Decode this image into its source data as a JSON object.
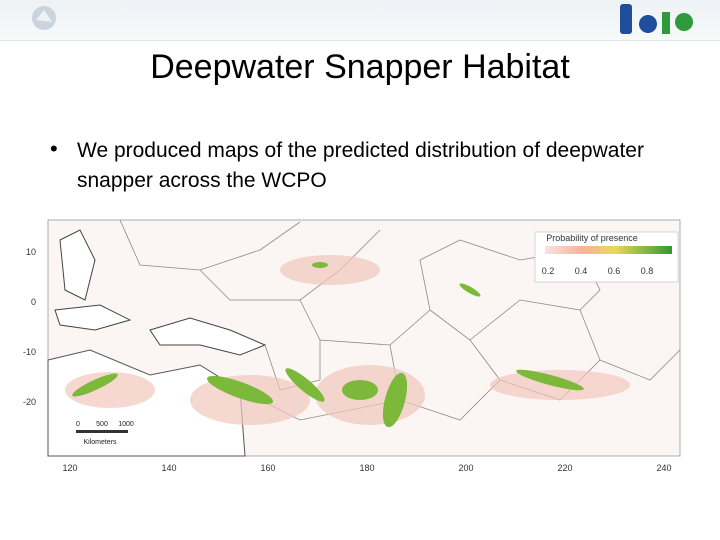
{
  "header": {
    "title": "Deepwater Snapper Habitat"
  },
  "bullets": [
    "We produced maps of the predicted distribution of deepwater snapper across the WCPO"
  ],
  "map": {
    "legend": {
      "title": "Probability of presence",
      "ticks": [
        "0.2",
        "0.4",
        "0.6",
        "0.8"
      ]
    },
    "y_axis": [
      "10",
      "0",
      "-10",
      "-20"
    ],
    "x_axis": [
      "120",
      "140",
      "160",
      "180",
      "200",
      "220",
      "240"
    ],
    "scale_bar": {
      "ticks": [
        "0",
        "500",
        "1000"
      ],
      "unit": "Kilometers"
    }
  }
}
